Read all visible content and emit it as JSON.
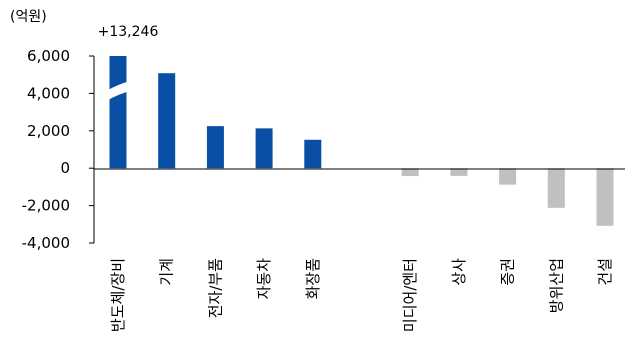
{
  "chart_data": {
    "type": "bar",
    "unit_label": "(억원)",
    "categories": [
      "반도체/장비",
      "기계",
      "전자/부품",
      "자동차",
      "화장품",
      "미디어/엔터",
      "상사",
      "증권",
      "방위산업",
      "건설"
    ],
    "category_slots": [
      0,
      1,
      2,
      3,
      4,
      6,
      7,
      8,
      9,
      10
    ],
    "values": [
      13246,
      5080,
      2250,
      2130,
      1520,
      -420,
      -410,
      -880,
      -2120,
      -3080
    ],
    "ylim": [
      -4000,
      6000
    ],
    "yticks": [
      6000,
      4000,
      2000,
      0,
      -2000,
      -4000
    ],
    "ytick_labels": [
      "6,000",
      "4,000",
      "2,000",
      "0",
      "-2,000",
      "-4,000"
    ],
    "annotation": "+13,246",
    "axis_break": true,
    "colors": {
      "positive": "#0a4fa6",
      "negative": "#c0c0c0"
    }
  }
}
